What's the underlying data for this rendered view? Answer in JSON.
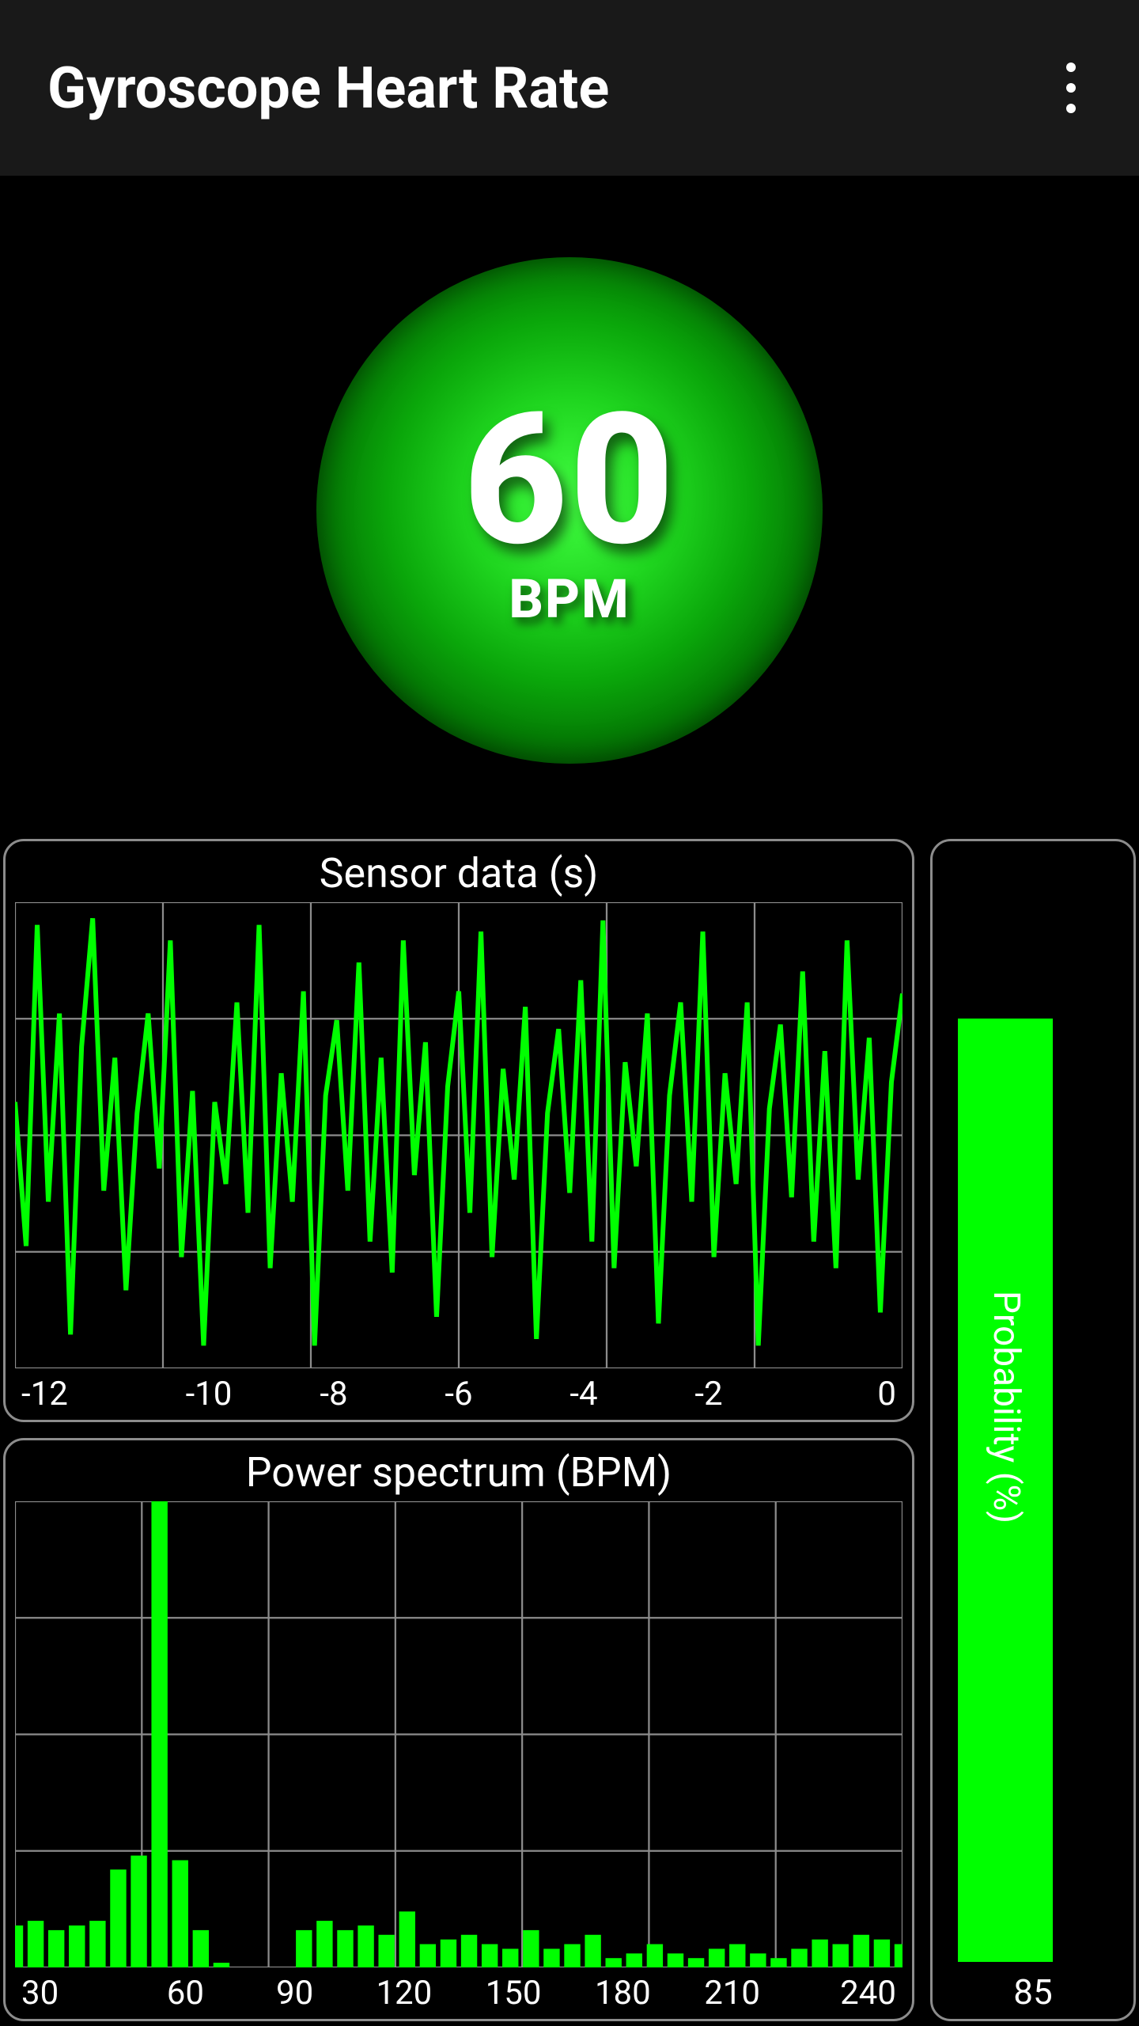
{
  "header": {
    "title": "Gyroscope Heart Rate",
    "bg_color": "#191919",
    "text_color": "#ffffff"
  },
  "gauge": {
    "value": "60",
    "unit": "BPM",
    "value_fontsize": 230,
    "unit_fontsize": 68,
    "ring_colors": [
      "#1e1e1e",
      "#999999"
    ],
    "orb_gradient": [
      "#42ff42",
      "#1fd51f",
      "#0aa60a",
      "#036b03",
      "#003400",
      "#001700"
    ],
    "text_color": "#ffffff"
  },
  "sensor_chart": {
    "type": "line",
    "title": "Sensor data (s)",
    "title_fontsize": 52,
    "line_color": "#00ff00",
    "line_width": 3,
    "grid_color": "#8c8c8c",
    "background_color": "#000000",
    "xlim": [
      -12,
      0
    ],
    "xtick_labels": [
      "-12",
      "-10",
      "-8",
      "-6",
      "-4",
      "-2",
      "0"
    ],
    "grid_cols": 6,
    "grid_rows": 4,
    "series": [
      {
        "x": -12.0,
        "y": 0.15
      },
      {
        "x": -11.85,
        "y": -0.5
      },
      {
        "x": -11.7,
        "y": 0.95
      },
      {
        "x": -11.55,
        "y": -0.3
      },
      {
        "x": -11.4,
        "y": 0.55
      },
      {
        "x": -11.25,
        "y": -0.9
      },
      {
        "x": -11.1,
        "y": 0.4
      },
      {
        "x": -10.95,
        "y": 0.98
      },
      {
        "x": -10.8,
        "y": -0.25
      },
      {
        "x": -10.65,
        "y": 0.35
      },
      {
        "x": -10.5,
        "y": -0.7
      },
      {
        "x": -10.35,
        "y": 0.1
      },
      {
        "x": -10.2,
        "y": 0.55
      },
      {
        "x": -10.05,
        "y": -0.15
      },
      {
        "x": -9.9,
        "y": 0.88
      },
      {
        "x": -9.75,
        "y": -0.55
      },
      {
        "x": -9.6,
        "y": 0.2
      },
      {
        "x": -9.45,
        "y": -0.95
      },
      {
        "x": -9.3,
        "y": 0.15
      },
      {
        "x": -9.15,
        "y": -0.22
      },
      {
        "x": -9.0,
        "y": 0.6
      },
      {
        "x": -8.85,
        "y": -0.35
      },
      {
        "x": -8.7,
        "y": 0.95
      },
      {
        "x": -8.55,
        "y": -0.6
      },
      {
        "x": -8.4,
        "y": 0.28
      },
      {
        "x": -8.25,
        "y": -0.3
      },
      {
        "x": -8.1,
        "y": 0.65
      },
      {
        "x": -7.95,
        "y": -0.95
      },
      {
        "x": -7.8,
        "y": 0.18
      },
      {
        "x": -7.65,
        "y": 0.52
      },
      {
        "x": -7.5,
        "y": -0.25
      },
      {
        "x": -7.35,
        "y": 0.78
      },
      {
        "x": -7.2,
        "y": -0.48
      },
      {
        "x": -7.05,
        "y": 0.35
      },
      {
        "x": -6.9,
        "y": -0.62
      },
      {
        "x": -6.75,
        "y": 0.88
      },
      {
        "x": -6.6,
        "y": -0.18
      },
      {
        "x": -6.45,
        "y": 0.42
      },
      {
        "x": -6.3,
        "y": -0.82
      },
      {
        "x": -6.15,
        "y": 0.22
      },
      {
        "x": -6.0,
        "y": 0.65
      },
      {
        "x": -5.85,
        "y": -0.35
      },
      {
        "x": -5.7,
        "y": 0.92
      },
      {
        "x": -5.55,
        "y": -0.55
      },
      {
        "x": -5.4,
        "y": 0.3
      },
      {
        "x": -5.25,
        "y": -0.2
      },
      {
        "x": -5.1,
        "y": 0.58
      },
      {
        "x": -4.95,
        "y": -0.92
      },
      {
        "x": -4.8,
        "y": 0.1
      },
      {
        "x": -4.65,
        "y": 0.48
      },
      {
        "x": -4.5,
        "y": -0.26
      },
      {
        "x": -4.35,
        "y": 0.7
      },
      {
        "x": -4.2,
        "y": -0.48
      },
      {
        "x": -4.05,
        "y": 0.97
      },
      {
        "x": -3.9,
        "y": -0.6
      },
      {
        "x": -3.75,
        "y": 0.33
      },
      {
        "x": -3.6,
        "y": -0.14
      },
      {
        "x": -3.45,
        "y": 0.55
      },
      {
        "x": -3.3,
        "y": -0.85
      },
      {
        "x": -3.15,
        "y": 0.18
      },
      {
        "x": -3.0,
        "y": 0.6
      },
      {
        "x": -2.85,
        "y": -0.3
      },
      {
        "x": -2.7,
        "y": 0.92
      },
      {
        "x": -2.55,
        "y": -0.55
      },
      {
        "x": -2.4,
        "y": 0.28
      },
      {
        "x": -2.25,
        "y": -0.22
      },
      {
        "x": -2.1,
        "y": 0.6
      },
      {
        "x": -1.95,
        "y": -0.95
      },
      {
        "x": -1.8,
        "y": 0.12
      },
      {
        "x": -1.65,
        "y": 0.5
      },
      {
        "x": -1.5,
        "y": -0.28
      },
      {
        "x": -1.35,
        "y": 0.74
      },
      {
        "x": -1.2,
        "y": -0.48
      },
      {
        "x": -1.05,
        "y": 0.38
      },
      {
        "x": -0.9,
        "y": -0.6
      },
      {
        "x": -0.75,
        "y": 0.88
      },
      {
        "x": -0.6,
        "y": -0.2
      },
      {
        "x": -0.45,
        "y": 0.44
      },
      {
        "x": -0.3,
        "y": -0.8
      },
      {
        "x": -0.15,
        "y": 0.24
      },
      {
        "x": 0.0,
        "y": 0.64
      }
    ]
  },
  "spectrum_chart": {
    "type": "bar",
    "title": "Power spectrum (BPM)",
    "title_fontsize": 52,
    "bar_color": "#00ff00",
    "grid_color": "#8c8c8c",
    "background_color": "#000000",
    "xlim": [
      30,
      245
    ],
    "xtick_labels": [
      "30",
      "60",
      "90",
      "120",
      "150",
      "180",
      "210",
      "240"
    ],
    "grid_cols": 7,
    "grid_rows": 4,
    "bar_width": 0.8,
    "bars": [
      {
        "x": 30,
        "y": 0.09
      },
      {
        "x": 35,
        "y": 0.1
      },
      {
        "x": 40,
        "y": 0.08
      },
      {
        "x": 45,
        "y": 0.09
      },
      {
        "x": 50,
        "y": 0.1
      },
      {
        "x": 55,
        "y": 0.21
      },
      {
        "x": 60,
        "y": 0.24
      },
      {
        "x": 65,
        "y": 1.0
      },
      {
        "x": 70,
        "y": 0.23
      },
      {
        "x": 75,
        "y": 0.08
      },
      {
        "x": 80,
        "y": 0.01
      },
      {
        "x": 85,
        "y": 0.0
      },
      {
        "x": 90,
        "y": 0.0
      },
      {
        "x": 95,
        "y": 0.0
      },
      {
        "x": 100,
        "y": 0.08
      },
      {
        "x": 105,
        "y": 0.1
      },
      {
        "x": 110,
        "y": 0.08
      },
      {
        "x": 115,
        "y": 0.09
      },
      {
        "x": 120,
        "y": 0.07
      },
      {
        "x": 125,
        "y": 0.12
      },
      {
        "x": 130,
        "y": 0.05
      },
      {
        "x": 135,
        "y": 0.06
      },
      {
        "x": 140,
        "y": 0.07
      },
      {
        "x": 145,
        "y": 0.05
      },
      {
        "x": 150,
        "y": 0.04
      },
      {
        "x": 155,
        "y": 0.08
      },
      {
        "x": 160,
        "y": 0.04
      },
      {
        "x": 165,
        "y": 0.05
      },
      {
        "x": 170,
        "y": 0.07
      },
      {
        "x": 175,
        "y": 0.02
      },
      {
        "x": 180,
        "y": 0.03
      },
      {
        "x": 185,
        "y": 0.05
      },
      {
        "x": 190,
        "y": 0.03
      },
      {
        "x": 195,
        "y": 0.02
      },
      {
        "x": 200,
        "y": 0.04
      },
      {
        "x": 205,
        "y": 0.05
      },
      {
        "x": 210,
        "y": 0.03
      },
      {
        "x": 215,
        "y": 0.02
      },
      {
        "x": 220,
        "y": 0.04
      },
      {
        "x": 225,
        "y": 0.06
      },
      {
        "x": 230,
        "y": 0.05
      },
      {
        "x": 235,
        "y": 0.07
      },
      {
        "x": 240,
        "y": 0.06
      },
      {
        "x": 245,
        "y": 0.05
      }
    ]
  },
  "probability": {
    "label": "Probability (%)",
    "value": "85",
    "percent": 85,
    "bar_color": "#00ff00",
    "label_fontsize": 46,
    "value_fontsize": 44
  },
  "panel_border_color": "#8c8c8c"
}
